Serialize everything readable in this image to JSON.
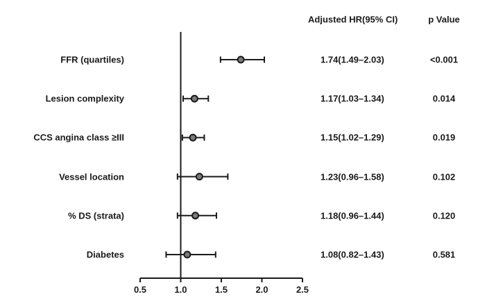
{
  "chart_data": {
    "type": "forest",
    "columns": {
      "estimate_header": "Adjusted HR(95% CI)",
      "p_header": "p Value"
    },
    "reference_line": 1.0,
    "xlim": [
      0.5,
      2.5
    ],
    "xticks": [
      "0.5",
      "1.0",
      "1.5",
      "2.0",
      "2.5"
    ],
    "rows": [
      {
        "label": "FFR (quartiles)",
        "hr": 1.74,
        "lo": 1.49,
        "hi": 2.03,
        "hr_text": "1.74(1.49–2.03)",
        "p": "<0.001"
      },
      {
        "label": "Lesion complexity",
        "hr": 1.17,
        "lo": 1.03,
        "hi": 1.34,
        "hr_text": "1.17(1.03–1.34)",
        "p": "0.014"
      },
      {
        "label": "CCS angina class ≥III",
        "hr": 1.15,
        "lo": 1.02,
        "hi": 1.29,
        "hr_text": "1.15(1.02–1.29)",
        "p": "0.019"
      },
      {
        "label": "Vessel location",
        "hr": 1.23,
        "lo": 0.96,
        "hi": 1.58,
        "hr_text": "1.23(0.96–1.58)",
        "p": "0.102"
      },
      {
        "label": "% DS (strata)",
        "hr": 1.18,
        "lo": 0.96,
        "hi": 1.44,
        "hr_text": "1.18(0.96–1.44)",
        "p": "0.120"
      },
      {
        "label": "Diabetes",
        "hr": 1.08,
        "lo": 0.82,
        "hi": 1.43,
        "hr_text": "1.08(0.82–1.43)",
        "p": "0.581"
      }
    ],
    "colors": {
      "ink": "#1a1a1a",
      "marker_fill": "#7a7a7a"
    }
  }
}
